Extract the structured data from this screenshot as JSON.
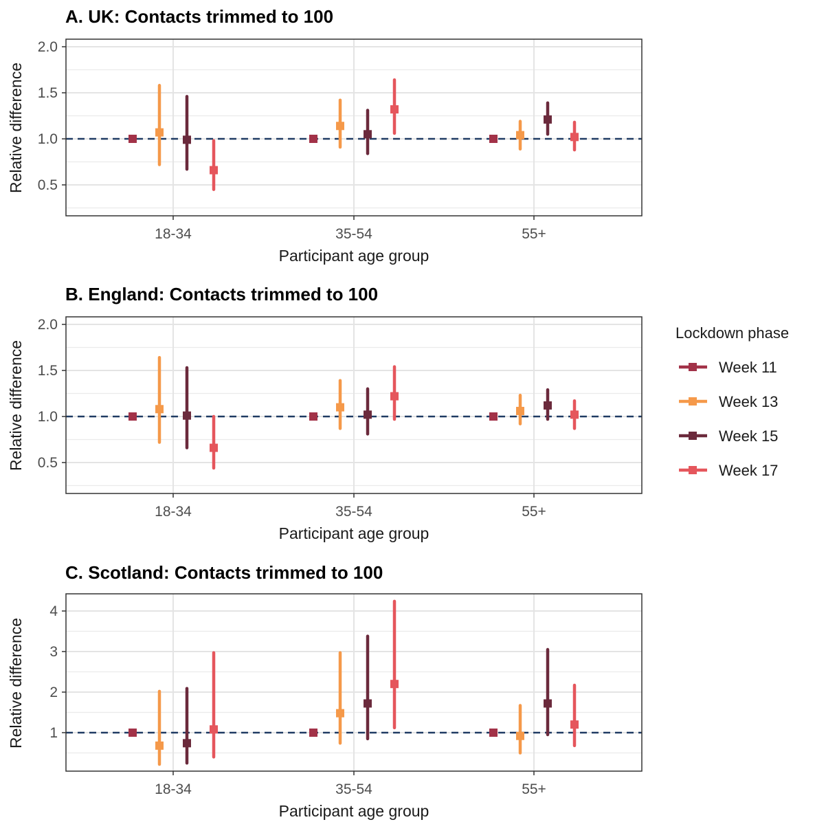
{
  "legend": {
    "title": "Lockdown phase",
    "position": "right",
    "entries": [
      {
        "name": "Week 11",
        "color": "#A23248"
      },
      {
        "name": "Week 13",
        "color": "#F5994A"
      },
      {
        "name": "Week 15",
        "color": "#6B2A3C"
      },
      {
        "name": "Week 17",
        "color": "#E5565C"
      }
    ]
  },
  "reference_line": {
    "y": 1.0,
    "color": "#1F3B63",
    "style": "dashed"
  },
  "chart_data": [
    {
      "type": "pointrange",
      "title": "A. UK: Contacts trimmed to  100",
      "xlabel": "Participant age group",
      "ylabel": "Relative difference",
      "ylim": [
        0.25,
        2.07
      ],
      "yticks": [
        0.5,
        1.0,
        1.5,
        2.0
      ],
      "yticklabels": [
        "0.5",
        "1.0",
        "1.5",
        "2.0"
      ],
      "categories": [
        "18-34",
        "35-54",
        "55+"
      ],
      "series": [
        {
          "name": "Week 11",
          "values": [
            1.0,
            1.0,
            1.0
          ],
          "lower": [
            1.0,
            1.0,
            1.0
          ],
          "upper": [
            1.0,
            1.0,
            1.0
          ]
        },
        {
          "name": "Week 13",
          "values": [
            1.07,
            1.14,
            1.04
          ],
          "lower": [
            0.72,
            0.91,
            0.89
          ],
          "upper": [
            1.58,
            1.42,
            1.19
          ]
        },
        {
          "name": "Week 15",
          "values": [
            0.99,
            1.05,
            1.21
          ],
          "lower": [
            0.67,
            0.84,
            1.05
          ],
          "upper": [
            1.46,
            1.31,
            1.39
          ]
        },
        {
          "name": "Week 17",
          "values": [
            0.66,
            1.32,
            1.02
          ],
          "lower": [
            0.45,
            1.06,
            0.88
          ],
          "upper": [
            0.98,
            1.64,
            1.18
          ]
        }
      ]
    },
    {
      "type": "pointrange",
      "title": "B. England: Contacts trimmed to  100",
      "xlabel": "Participant age group",
      "ylabel": "Relative difference",
      "ylim": [
        0.25,
        2.07
      ],
      "yticks": [
        0.5,
        1.0,
        1.5,
        2.0
      ],
      "yticklabels": [
        "0.5",
        "1.0",
        "1.5",
        "2.0"
      ],
      "categories": [
        "18-34",
        "35-54",
        "55+"
      ],
      "series": [
        {
          "name": "Week 11",
          "values": [
            1.0,
            1.0,
            1.0
          ],
          "lower": [
            1.0,
            1.0,
            1.0
          ],
          "upper": [
            1.0,
            1.0,
            1.0
          ]
        },
        {
          "name": "Week 13",
          "values": [
            1.08,
            1.1,
            1.06
          ],
          "lower": [
            0.72,
            0.87,
            0.92
          ],
          "upper": [
            1.64,
            1.39,
            1.23
          ]
        },
        {
          "name": "Week 15",
          "values": [
            1.01,
            1.02,
            1.12
          ],
          "lower": [
            0.66,
            0.81,
            0.97
          ],
          "upper": [
            1.53,
            1.3,
            1.29
          ]
        },
        {
          "name": "Week 17",
          "values": [
            0.66,
            1.22,
            1.02
          ],
          "lower": [
            0.44,
            0.97,
            0.87
          ],
          "upper": [
            1.0,
            1.54,
            1.17
          ]
        }
      ]
    },
    {
      "type": "pointrange",
      "title": "C. Scotland: Contacts trimmed to  100",
      "xlabel": "Participant age group",
      "ylabel": "Relative difference",
      "ylim": [
        0.1,
        4.45
      ],
      "yticks": [
        1,
        2,
        3,
        4
      ],
      "yticklabels": [
        "1",
        "2",
        "3",
        "4"
      ],
      "categories": [
        "18-34",
        "35-54",
        "55+"
      ],
      "series": [
        {
          "name": "Week 11",
          "values": [
            1.0,
            1.0,
            1.0
          ],
          "lower": [
            1.0,
            1.0,
            1.0
          ],
          "upper": [
            1.0,
            1.0,
            1.0
          ]
        },
        {
          "name": "Week 13",
          "values": [
            0.68,
            1.48,
            0.92
          ],
          "lower": [
            0.22,
            0.74,
            0.5
          ],
          "upper": [
            2.02,
            2.97,
            1.67
          ]
        },
        {
          "name": "Week 15",
          "values": [
            0.74,
            1.72,
            1.72
          ],
          "lower": [
            0.25,
            0.85,
            0.95
          ],
          "upper": [
            2.09,
            3.38,
            3.05
          ]
        },
        {
          "name": "Week 17",
          "values": [
            1.08,
            2.2,
            1.2
          ],
          "lower": [
            0.4,
            1.12,
            0.68
          ],
          "upper": [
            2.97,
            4.24,
            2.17
          ]
        }
      ]
    }
  ]
}
